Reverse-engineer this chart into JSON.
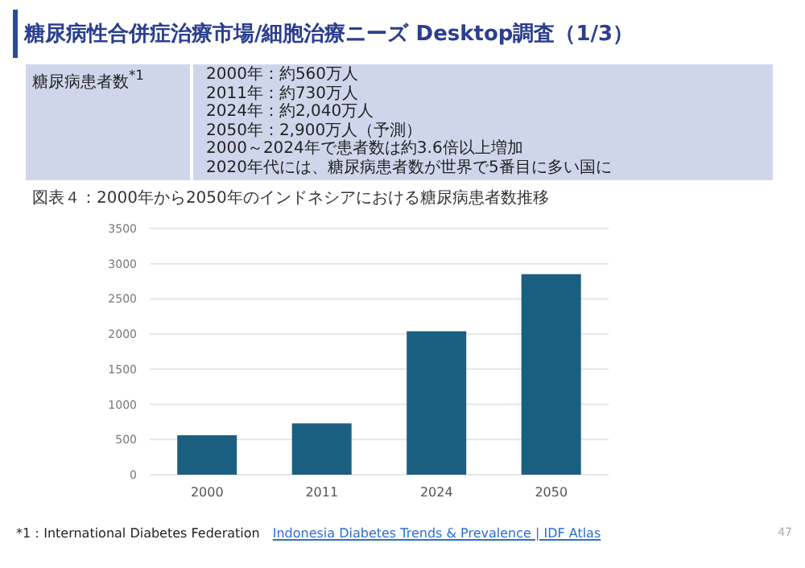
{
  "chart_data": {
    "type": "bar",
    "title": "糖尿病性合併症治療市場/細胞治療ニーズ Desktop調査（1/3）",
    "subtitle": "図表４：2000年から2050年のインドネシアにおける糖尿病患者数推移",
    "categories": [
      "2000",
      "2011",
      "2024",
      "2050"
    ],
    "values": [
      560,
      730,
      2040,
      2850
    ],
    "color": "#1b5f80",
    "ylim": [
      0,
      3500
    ],
    "yticks": [
      0,
      500,
      1000,
      1500,
      2000,
      2500,
      3000,
      3500
    ],
    "grid": "y",
    "annotations": [
      "糖尿病患者数$^{*1}$",
      "2000年：約560万人",
      "2011年：約730万人",
      "2024年：約2,040万人",
      "2050年：2,900万人（予測）",
      "2000～2024年で患者数は約3.6倍以上増加",
      "2020年代には、糖尿病患者数が世界で5番目に多い国に",
      "*1：International Diabetes Federation",
      "Indonesia Diabetes Trends & Prevalence | IDF Atlas",
      "47"
    ]
  }
}
